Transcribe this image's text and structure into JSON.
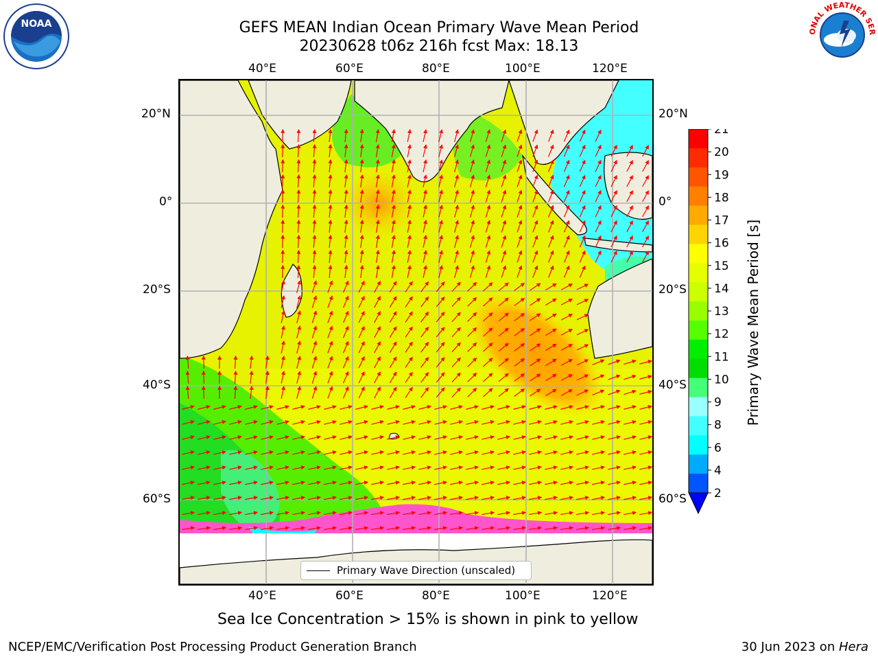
{
  "title": {
    "line1": "GEFS MEAN Indian Ocean Primary Wave Mean Period",
    "line2": "20230628 t06z 216h fcst   Max: 18.13"
  },
  "axes": {
    "lon_labels": [
      "40°E",
      "60°E",
      "80°E",
      "100°E",
      "120°E"
    ],
    "lat_labels": [
      "20°N",
      "0°",
      "20°S",
      "40°S",
      "60°S"
    ]
  },
  "colorbar": {
    "label": "Primary Wave Mean Period [s]",
    "ticks": [
      "21",
      "20",
      "19",
      "18",
      "17",
      "16",
      "15",
      "14",
      "13",
      "12",
      "11",
      "10",
      "9",
      "8",
      "6",
      "4",
      "2"
    ],
    "colors": [
      "#ff0000",
      "#ff2a00",
      "#ff5500",
      "#ff7f00",
      "#ffaa00",
      "#ffd400",
      "#ffff00",
      "#e6ff00",
      "#ccff00",
      "#99ff00",
      "#55ff00",
      "#00ee00",
      "#00dd00",
      "#44ff77",
      "#99ffff",
      "#44ffff",
      "#00ffff",
      "#00aaff",
      "#0055ff"
    ],
    "extend_color": "#0000ff"
  },
  "legend": {
    "label": "Primary Wave Direction (unscaled)"
  },
  "subtitle": "Sea Ice Concentration > 15% is shown in pink to yellow",
  "footer": {
    "left": "NCEP/EMC/Verification Post Processing Product Generation Branch",
    "right_prefix": "30 Jun 2023 on ",
    "right_host": "Hera"
  },
  "logos": {
    "left": "NOAA",
    "right": "NATIONAL WEATHER SERVICE"
  },
  "colors": {
    "land": "#efedde",
    "ice": "#ffffff",
    "arrow": "#ff0000",
    "grid": "#b0b0b0"
  }
}
